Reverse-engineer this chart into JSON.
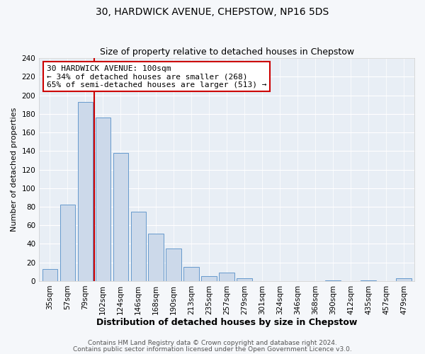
{
  "title": "30, HARDWICK AVENUE, CHEPSTOW, NP16 5DS",
  "subtitle": "Size of property relative to detached houses in Chepstow",
  "xlabel": "Distribution of detached houses by size in Chepstow",
  "ylabel": "Number of detached properties",
  "bar_labels": [
    "35sqm",
    "57sqm",
    "79sqm",
    "102sqm",
    "124sqm",
    "146sqm",
    "168sqm",
    "190sqm",
    "213sqm",
    "235sqm",
    "257sqm",
    "279sqm",
    "301sqm",
    "324sqm",
    "346sqm",
    "368sqm",
    "390sqm",
    "412sqm",
    "435sqm",
    "457sqm",
    "479sqm"
  ],
  "bar_values": [
    13,
    82,
    193,
    176,
    138,
    75,
    51,
    35,
    15,
    5,
    9,
    3,
    0,
    0,
    0,
    0,
    1,
    0,
    1,
    0,
    3
  ],
  "bar_color": "#ccd9ea",
  "bar_edge_color": "#6699cc",
  "vline_color": "#cc0000",
  "annotation_line1": "30 HARDWICK AVENUE: 100sqm",
  "annotation_line2": "← 34% of detached houses are smaller (268)",
  "annotation_line3": "65% of semi-detached houses are larger (513) →",
  "annotation_box_edge": "#cc0000",
  "annotation_box_face": "#ffffff",
  "ylim": [
    0,
    240
  ],
  "yticks": [
    0,
    20,
    40,
    60,
    80,
    100,
    120,
    140,
    160,
    180,
    200,
    220,
    240
  ],
  "footer_line1": "Contains HM Land Registry data © Crown copyright and database right 2024.",
  "footer_line2": "Contains public sector information licensed under the Open Government Licence v3.0.",
  "plot_bg_color": "#e8eef5",
  "fig_bg_color": "#f5f7fa",
  "title_fontsize": 10,
  "subtitle_fontsize": 9,
  "xlabel_fontsize": 9,
  "ylabel_fontsize": 8,
  "tick_fontsize": 7.5,
  "annotation_fontsize": 8,
  "footer_fontsize": 6.5
}
